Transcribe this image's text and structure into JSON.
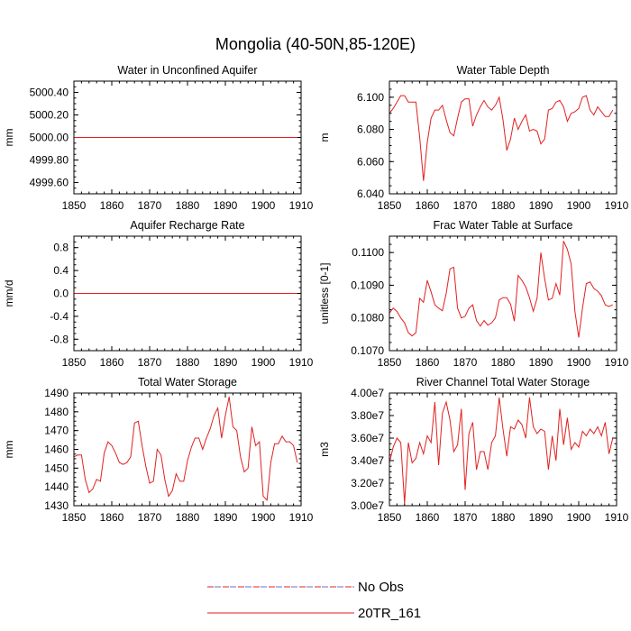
{
  "title": "Mongolia (40-50N,85-120E)",
  "legend": [
    {
      "label": "No Obs",
      "color": "#6a6ad8",
      "alt_color": "#e02020",
      "style": "dashed"
    },
    {
      "label": "20TR_161",
      "color": "#e02020",
      "style": "solid"
    }
  ],
  "chart_data": [
    {
      "type": "line",
      "title": "Water in Unconfined Aquifer",
      "ylabel": "mm",
      "xlim": [
        1850,
        1910
      ],
      "ylim": [
        4999.5,
        5000.5
      ],
      "xticks": [
        1850,
        1860,
        1870,
        1880,
        1890,
        1900,
        1910
      ],
      "yticks": [
        4999.6,
        4999.8,
        5000.0,
        5000.2,
        5000.4
      ],
      "ytick_labels": [
        "4999.60",
        "4999.80",
        "5000.00",
        "5000.20",
        "5000.40"
      ],
      "series": [
        {
          "name": "No Obs",
          "color": "#6a6ad8",
          "x": [
            1850,
            1909
          ],
          "values": [
            5000.0,
            5000.0
          ]
        },
        {
          "name": "20TR_161",
          "color": "#e02020",
          "x": [
            1850,
            1909
          ],
          "values": [
            5000.0,
            5000.0
          ]
        }
      ]
    },
    {
      "type": "line",
      "title": "Water Table Depth",
      "ylabel": "m",
      "xlim": [
        1850,
        1910
      ],
      "ylim": [
        6.04,
        6.11
      ],
      "xticks": [
        1850,
        1860,
        1870,
        1880,
        1890,
        1900,
        1910
      ],
      "yticks": [
        6.04,
        6.06,
        6.08,
        6.1
      ],
      "ytick_labels": [
        "6.040",
        "6.060",
        "6.080",
        "6.100"
      ],
      "series": [
        {
          "name": "20TR_161",
          "color": "#e02020",
          "x": [
            1850,
            1851,
            1852,
            1853,
            1854,
            1855,
            1856,
            1857,
            1858,
            1859,
            1860,
            1861,
            1862,
            1863,
            1864,
            1865,
            1866,
            1867,
            1868,
            1869,
            1870,
            1871,
            1872,
            1873,
            1874,
            1875,
            1876,
            1877,
            1878,
            1879,
            1880,
            1881,
            1882,
            1883,
            1884,
            1885,
            1886,
            1887,
            1888,
            1889,
            1890,
            1891,
            1892,
            1893,
            1894,
            1895,
            1896,
            1897,
            1898,
            1899,
            1900,
            1901,
            1902,
            1903,
            1904,
            1905,
            1906,
            1907,
            1908,
            1909
          ],
          "values": [
            6.09,
            6.093,
            6.097,
            6.101,
            6.101,
            6.097,
            6.097,
            6.097,
            6.075,
            6.048,
            6.072,
            6.087,
            6.092,
            6.092,
            6.095,
            6.086,
            6.078,
            6.076,
            6.087,
            6.097,
            6.099,
            6.099,
            6.082,
            6.089,
            6.094,
            6.098,
            6.094,
            6.092,
            6.095,
            6.1,
            6.086,
            6.067,
            6.074,
            6.087,
            6.08,
            6.085,
            6.089,
            6.079,
            6.08,
            6.079,
            6.071,
            6.074,
            6.092,
            6.093,
            6.097,
            6.098,
            6.094,
            6.085,
            6.09,
            6.091,
            6.093,
            6.1,
            6.101,
            6.092,
            6.089,
            6.094,
            6.091,
            6.088,
            6.088,
            6.092
          ]
        }
      ]
    },
    {
      "type": "line",
      "title": "Aquifer Recharge Rate",
      "ylabel": "mm/d",
      "xlim": [
        1850,
        1910
      ],
      "ylim": [
        -1.0,
        1.0
      ],
      "xticks": [
        1850,
        1860,
        1870,
        1880,
        1890,
        1900,
        1910
      ],
      "yticks": [
        -0.8,
        -0.4,
        0.0,
        0.4,
        0.8
      ],
      "ytick_labels": [
        "-0.8",
        "-0.4",
        "0.0",
        "0.4",
        "0.8"
      ],
      "series": [
        {
          "name": "No Obs",
          "color": "#6a6ad8",
          "x": [
            1850,
            1909
          ],
          "values": [
            0.0,
            0.0
          ]
        },
        {
          "name": "20TR_161",
          "color": "#e02020",
          "x": [
            1850,
            1909
          ],
          "values": [
            0.0,
            0.0
          ]
        }
      ]
    },
    {
      "type": "line",
      "title": "Frac Water Table at Surface",
      "ylabel": "unitless [0-1]",
      "xlim": [
        1850,
        1910
      ],
      "ylim": [
        0.107,
        0.1105
      ],
      "xticks": [
        1850,
        1860,
        1870,
        1880,
        1890,
        1900,
        1910
      ],
      "yticks": [
        0.107,
        0.108,
        0.109,
        0.11
      ],
      "ytick_labels": [
        "0.1070",
        "0.1080",
        "0.1090",
        "0.1100"
      ],
      "series": [
        {
          "name": "20TR_161",
          "color": "#e02020",
          "x": [
            1850,
            1851,
            1852,
            1853,
            1854,
            1855,
            1856,
            1857,
            1858,
            1859,
            1860,
            1861,
            1862,
            1863,
            1864,
            1865,
            1866,
            1867,
            1868,
            1869,
            1870,
            1871,
            1872,
            1873,
            1874,
            1875,
            1876,
            1877,
            1878,
            1879,
            1880,
            1881,
            1882,
            1883,
            1884,
            1885,
            1886,
            1887,
            1888,
            1889,
            1890,
            1891,
            1892,
            1893,
            1894,
            1895,
            1896,
            1897,
            1898,
            1899,
            1900,
            1901,
            1902,
            1903,
            1904,
            1905,
            1906,
            1907,
            1908,
            1909
          ],
          "values": [
            0.10815,
            0.1083,
            0.1082,
            0.108,
            0.10785,
            0.10755,
            0.10745,
            0.10755,
            0.1086,
            0.10848,
            0.10915,
            0.1088,
            0.1084,
            0.1083,
            0.10822,
            0.10875,
            0.1095,
            0.10955,
            0.1083,
            0.108,
            0.10805,
            0.1083,
            0.1084,
            0.10792,
            0.10775,
            0.10792,
            0.10778,
            0.10785,
            0.108,
            0.10855,
            0.10862,
            0.10862,
            0.10842,
            0.1079,
            0.1093,
            0.10915,
            0.10895,
            0.10862,
            0.1082,
            0.1086,
            0.11,
            0.1092,
            0.10855,
            0.1086,
            0.10905,
            0.1087,
            0.11035,
            0.1101,
            0.10965,
            0.1082,
            0.1074,
            0.1083,
            0.10905,
            0.1091,
            0.1089,
            0.10882,
            0.10868,
            0.1084,
            0.10835,
            0.1084
          ]
        }
      ]
    },
    {
      "type": "line",
      "title": "Total Water Storage",
      "ylabel": "mm",
      "xlim": [
        1850,
        1910
      ],
      "ylim": [
        1430,
        1490
      ],
      "xticks": [
        1850,
        1860,
        1870,
        1880,
        1890,
        1900,
        1910
      ],
      "yticks": [
        1430,
        1440,
        1450,
        1460,
        1470,
        1480,
        1490
      ],
      "ytick_labels": [
        "1430",
        "1440",
        "1450",
        "1460",
        "1470",
        "1480",
        "1490"
      ],
      "series": [
        {
          "name": "20TR_161",
          "color": "#e02020",
          "x": [
            1850,
            1851,
            1852,
            1853,
            1854,
            1855,
            1856,
            1857,
            1858,
            1859,
            1860,
            1861,
            1862,
            1863,
            1864,
            1865,
            1866,
            1867,
            1868,
            1869,
            1870,
            1871,
            1872,
            1873,
            1874,
            1875,
            1876,
            1877,
            1878,
            1879,
            1880,
            1881,
            1882,
            1883,
            1884,
            1885,
            1886,
            1887,
            1888,
            1889,
            1890,
            1891,
            1892,
            1893,
            1894,
            1895,
            1896,
            1897,
            1898,
            1899,
            1900,
            1901,
            1902,
            1903,
            1904,
            1905,
            1906,
            1907,
            1908,
            1909
          ],
          "values": [
            1456,
            1457,
            1457,
            1444,
            1437,
            1439,
            1444,
            1443,
            1458,
            1464,
            1462,
            1458,
            1453,
            1452,
            1453,
            1456,
            1474,
            1475,
            1462,
            1451,
            1442,
            1443,
            1460,
            1457,
            1444,
            1435,
            1438,
            1447,
            1443,
            1443,
            1454,
            1461,
            1466,
            1466,
            1460,
            1466,
            1471,
            1478,
            1482,
            1466,
            1478,
            1488,
            1472,
            1470,
            1456,
            1448,
            1450,
            1472,
            1462,
            1464,
            1435,
            1433,
            1453,
            1463,
            1463,
            1467,
            1464,
            1464,
            1462,
            1453
          ]
        }
      ]
    },
    {
      "type": "line",
      "title": "River Channel Total Water Storage",
      "ylabel": "m3",
      "xlim": [
        1850,
        1910
      ],
      "ylim": [
        30000000,
        40000000
      ],
      "xticks": [
        1850,
        1860,
        1870,
        1880,
        1890,
        1900,
        1910
      ],
      "yticks": [
        30000000,
        32000000,
        34000000,
        36000000,
        38000000,
        40000000
      ],
      "ytick_labels": [
        "3.00e7",
        "3.20e7",
        "3.40e7",
        "3.60e7",
        "3.80e7",
        "4.00e7"
      ],
      "series": [
        {
          "name": "20TR_161",
          "color": "#e02020",
          "x": [
            1850,
            1851,
            1852,
            1853,
            1854,
            1855,
            1856,
            1857,
            1858,
            1859,
            1860,
            1861,
            1862,
            1863,
            1864,
            1865,
            1866,
            1867,
            1868,
            1869,
            1870,
            1871,
            1872,
            1873,
            1874,
            1875,
            1876,
            1877,
            1878,
            1879,
            1880,
            1881,
            1882,
            1883,
            1884,
            1885,
            1886,
            1887,
            1888,
            1889,
            1890,
            1891,
            1892,
            1893,
            1894,
            1895,
            1896,
            1897,
            1898,
            1899,
            1900,
            1901,
            1902,
            1903,
            1904,
            1905,
            1906,
            1907,
            1908,
            1909
          ],
          "values": [
            33800000,
            35200000,
            36000000,
            35600000,
            30200000,
            35600000,
            33800000,
            34200000,
            35600000,
            34600000,
            36200000,
            35600000,
            39200000,
            33600000,
            38200000,
            39200000,
            37600000,
            34800000,
            35400000,
            38600000,
            31400000,
            36400000,
            37400000,
            33200000,
            34800000,
            34800000,
            33200000,
            35600000,
            36200000,
            39600000,
            36800000,
            34400000,
            37000000,
            36800000,
            37600000,
            37200000,
            36000000,
            39600000,
            37000000,
            36400000,
            36800000,
            36600000,
            33200000,
            36200000,
            34000000,
            38600000,
            35400000,
            37800000,
            35000000,
            35600000,
            35200000,
            36600000,
            36200000,
            36800000,
            36400000,
            37000000,
            36200000,
            37400000,
            34600000,
            36000000
          ]
        }
      ]
    }
  ]
}
